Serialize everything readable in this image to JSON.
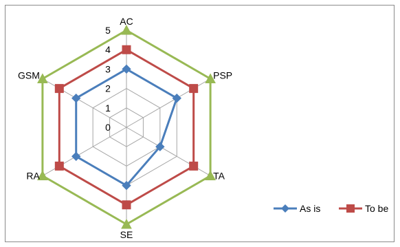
{
  "chart_data": {
    "type": "radar",
    "categories": [
      "AC",
      "PSP",
      "TA",
      "SE",
      "RA",
      "GSM"
    ],
    "ticks": [
      "0",
      "1",
      "2",
      "3",
      "4",
      "5"
    ],
    "rmax": 5,
    "series": [
      {
        "name": "As is",
        "values": [
          3,
          3,
          2,
          3,
          3,
          3
        ],
        "color": "#4a7ebb",
        "marker": "diamond"
      },
      {
        "name": "To be",
        "values": [
          4,
          4,
          4,
          4,
          4,
          4
        ],
        "color": "#be4b48",
        "marker": "square"
      },
      {
        "name": "",
        "values": [
          5,
          5,
          5,
          5,
          5,
          5
        ],
        "color": "#98b954",
        "marker": "triangle"
      }
    ],
    "legend": {
      "position": "right",
      "entries": [
        "As is",
        "To be"
      ]
    },
    "grid": true
  }
}
